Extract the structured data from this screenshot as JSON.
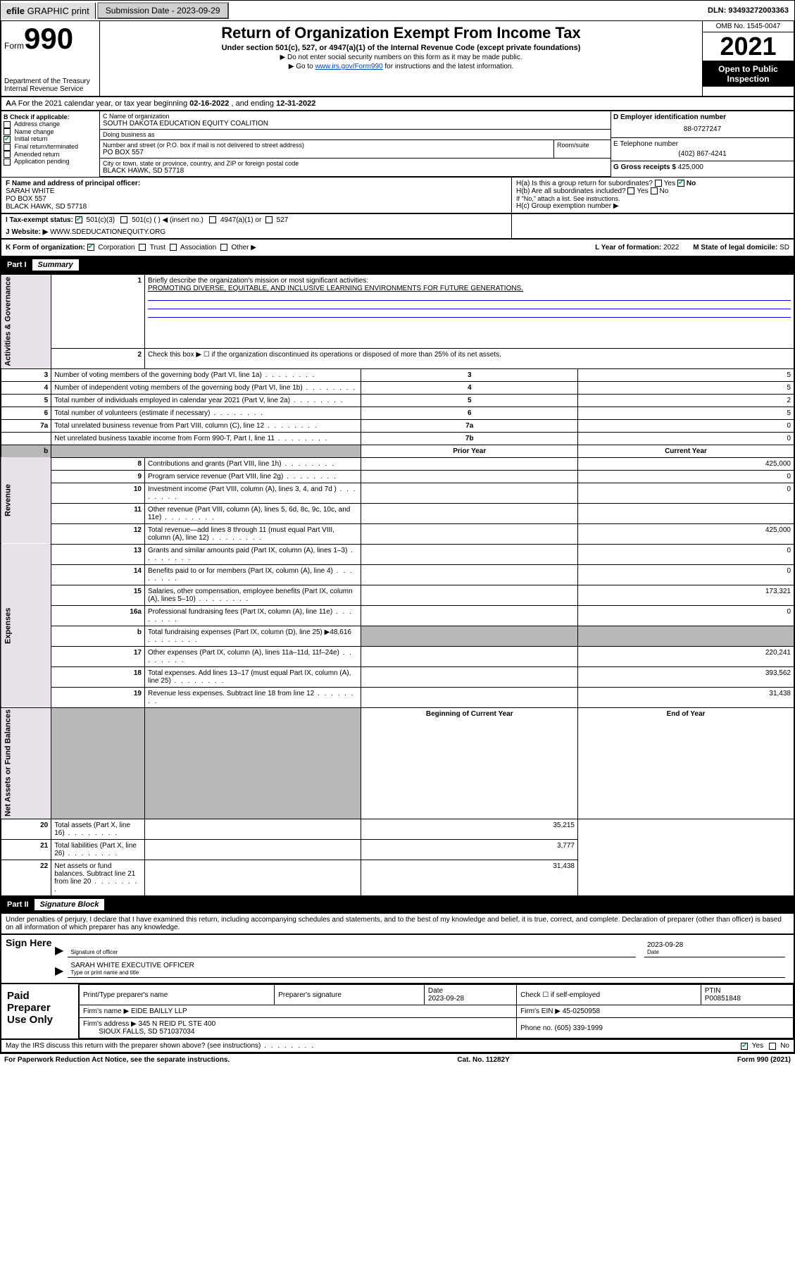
{
  "topbar": {
    "efile_prefix": "efile",
    "efile_rest": " GRAPHIC print",
    "submission_label": "Submission Date - ",
    "submission_date": "2023-09-29",
    "dln_label": "DLN: ",
    "dln": "93493272003363"
  },
  "header": {
    "form_word": "Form",
    "form_num": "990",
    "dept": "Department of the Treasury\nInternal Revenue Service",
    "title": "Return of Organization Exempt From Income Tax",
    "sub": "Under section 501(c), 527, or 4947(a)(1) of the Internal Revenue Code (except private foundations)",
    "note1": "▶ Do not enter social security numbers on this form as it may be made public.",
    "note2_pre": "▶ Go to ",
    "note2_link": "www.irs.gov/Form990",
    "note2_post": " for instructions and the latest information.",
    "omb": "OMB No. 1545-0047",
    "year": "2021",
    "pub": "Open to Public Inspection"
  },
  "rowA": {
    "text_pre": "A For the 2021 calendar year, or tax year beginning ",
    "begin": "02-16-2022",
    "mid": " , and ending ",
    "end": "12-31-2022"
  },
  "colB": {
    "label": "B Check if applicable:",
    "opts": [
      "Address change",
      "Name change",
      "Initial return",
      "Final return/terminated",
      "Amended return",
      "Application pending"
    ],
    "checked_idx": 2
  },
  "colC": {
    "name_lbl": "C Name of organization",
    "name": "SOUTH DAKOTA EDUCATION EQUITY COALITION",
    "dba_lbl": "Doing business as",
    "dba": "",
    "street_lbl": "Number and street (or P.O. box if mail is not delivered to street address)",
    "room_lbl": "Room/suite",
    "street": "PO BOX 557",
    "city_lbl": "City or town, state or province, country, and ZIP or foreign postal code",
    "city": "BLACK HAWK, SD  57718"
  },
  "colDE": {
    "d_lbl": "D Employer identification number",
    "d_val": "88-0727247",
    "e_lbl": "E Telephone number",
    "e_val": "(402) 867-4241",
    "g_lbl": "G Gross receipts $ ",
    "g_val": "425,000"
  },
  "rowF": {
    "lbl": "F Name and address of principal officer:",
    "v1": "SARAH WHITE",
    "v2": "PO BOX 557",
    "v3": "BLACK HAWK, SD  57718"
  },
  "rowH": {
    "ha": "H(a)  Is this a group return for subordinates?",
    "ha_ans": "No",
    "hb": "H(b)  Are all subordinates included?",
    "hb_note": "If \"No,\" attach a list. See instructions.",
    "hc": "H(c)  Group exemption number ▶"
  },
  "rowI": {
    "lbl": "I    Tax-exempt status:",
    "o1": "501(c)(3)",
    "o2": "501(c) (   ) ◀ (insert no.)",
    "o3": "4947(a)(1) or",
    "o4": "527"
  },
  "rowJ": {
    "lbl": "J    Website: ▶ ",
    "val": "WWW.SDEDUCATIONEQUITY.ORG"
  },
  "rowK": {
    "lbl": "K Form of organization:",
    "o1": "Corporation",
    "o2": "Trust",
    "o3": "Association",
    "o4": "Other ▶",
    "l_lbl": "L Year of formation: ",
    "l_val": "2022",
    "m_lbl": "M State of legal domicile: ",
    "m_val": "SD"
  },
  "part1": {
    "num": "Part I",
    "title": "Summary"
  },
  "summary": {
    "q1": "Briefly describe the organization's mission or most significant activities:",
    "q1v": "PROMOTING DIVERSE, EQUITABLE, AND INCLUSIVE LEARNING ENVIRONMENTS FOR FUTURE GENERATIONS.",
    "q2": "Check this box ▶ ☐  if the organization discontinued its operations or disposed of more than 25% of its net assets.",
    "rows_gov": [
      {
        "n": "3",
        "t": "Number of voting members of the governing body (Part VI, line 1a)",
        "box": "3",
        "v": "5"
      },
      {
        "n": "4",
        "t": "Number of independent voting members of the governing body (Part VI, line 1b)",
        "box": "4",
        "v": "5"
      },
      {
        "n": "5",
        "t": "Total number of individuals employed in calendar year 2021 (Part V, line 2a)",
        "box": "5",
        "v": "2"
      },
      {
        "n": "6",
        "t": "Total number of volunteers (estimate if necessary)",
        "box": "6",
        "v": "5"
      },
      {
        "n": "7a",
        "t": "Total unrelated business revenue from Part VIII, column (C), line 12",
        "box": "7a",
        "v": "0"
      },
      {
        "n": "",
        "t": "Net unrelated business taxable income from Form 990-T, Part I, line 11",
        "box": "7b",
        "v": "0"
      }
    ],
    "hdr_prior": "Prior Year",
    "hdr_curr": "Current Year",
    "rows_rev": [
      {
        "n": "8",
        "t": "Contributions and grants (Part VIII, line 1h)",
        "p": "",
        "c": "425,000"
      },
      {
        "n": "9",
        "t": "Program service revenue (Part VIII, line 2g)",
        "p": "",
        "c": "0"
      },
      {
        "n": "10",
        "t": "Investment income (Part VIII, column (A), lines 3, 4, and 7d )",
        "p": "",
        "c": "0"
      },
      {
        "n": "11",
        "t": "Other revenue (Part VIII, column (A), lines 5, 6d, 8c, 9c, 10c, and 11e)",
        "p": "",
        "c": ""
      },
      {
        "n": "12",
        "t": "Total revenue—add lines 8 through 11 (must equal Part VIII, column (A), line 12)",
        "p": "",
        "c": "425,000"
      }
    ],
    "rows_exp": [
      {
        "n": "13",
        "t": "Grants and similar amounts paid (Part IX, column (A), lines 1–3)",
        "p": "",
        "c": "0"
      },
      {
        "n": "14",
        "t": "Benefits paid to or for members (Part IX, column (A), line 4)",
        "p": "",
        "c": "0"
      },
      {
        "n": "15",
        "t": "Salaries, other compensation, employee benefits (Part IX, column (A), lines 5–10)",
        "p": "",
        "c": "173,321"
      },
      {
        "n": "16a",
        "t": "Professional fundraising fees (Part IX, column (A), line 11e)",
        "p": "",
        "c": "0"
      },
      {
        "n": "b",
        "t": "Total fundraising expenses (Part IX, column (D), line 25) ▶48,616",
        "p": "grey",
        "c": "grey"
      },
      {
        "n": "17",
        "t": "Other expenses (Part IX, column (A), lines 11a–11d, 11f–24e)",
        "p": "",
        "c": "220,241"
      },
      {
        "n": "18",
        "t": "Total expenses. Add lines 13–17 (must equal Part IX, column (A), line 25)",
        "p": "",
        "c": "393,562"
      },
      {
        "n": "19",
        "t": "Revenue less expenses. Subtract line 18 from line 12",
        "p": "",
        "c": "31,438"
      }
    ],
    "hdr_boy": "Beginning of Current Year",
    "hdr_eoy": "End of Year",
    "rows_na": [
      {
        "n": "20",
        "t": "Total assets (Part X, line 16)",
        "p": "",
        "c": "35,215"
      },
      {
        "n": "21",
        "t": "Total liabilities (Part X, line 26)",
        "p": "",
        "c": "3,777"
      },
      {
        "n": "22",
        "t": "Net assets or fund balances. Subtract line 21 from line 20",
        "p": "",
        "c": "31,438"
      }
    ],
    "side_gov": "Activities & Governance",
    "side_rev": "Revenue",
    "side_exp": "Expenses",
    "side_na": "Net Assets or Fund Balances"
  },
  "part2": {
    "num": "Part II",
    "title": "Signature Block"
  },
  "sig": {
    "perjury": "Under penalties of perjury, I declare that I have examined this return, including accompanying schedules and statements, and to the best of my knowledge and belief, it is true, correct, and complete. Declaration of preparer (other than officer) is based on all information of which preparer has any knowledge.",
    "sign_here": "Sign Here",
    "sig_officer": "Signature of officer",
    "date_lbl": "Date",
    "date": "2023-09-28",
    "name_title": "SARAH WHITE  EXECUTIVE OFFICER",
    "type_name": "Type or print name and title"
  },
  "prep": {
    "lbl": "Paid Preparer Use Only",
    "h1": "Print/Type preparer's name",
    "h2": "Preparer's signature",
    "h3": "Date",
    "h3v": "2023-09-28",
    "h4": "Check ☐ if self-employed",
    "h5": "PTIN",
    "h5v": "P00851848",
    "firm_lbl": "Firm's name    ▶ ",
    "firm": "EIDE BAILLY LLP",
    "ein_lbl": "Firm's EIN ▶ ",
    "ein": "45-0250958",
    "addr_lbl": "Firm's address ▶ ",
    "addr1": "345 N REID PL STE 400",
    "addr2": "SIOUX FALLS, SD  571037034",
    "phone_lbl": "Phone no. ",
    "phone": "(605) 339-1999"
  },
  "foot": {
    "q": "May the IRS discuss this return with the preparer shown above? (see instructions)",
    "yes": "Yes",
    "no": "No",
    "pra": "For Paperwork Reduction Act Notice, see the separate instructions.",
    "cat": "Cat. No. 11282Y",
    "form": "Form 990 (2021)"
  },
  "colors": {
    "link": "#0645ad",
    "side_bg": "#e8e1ea",
    "grey": "#b8b8b8",
    "check": "#00aa55"
  }
}
